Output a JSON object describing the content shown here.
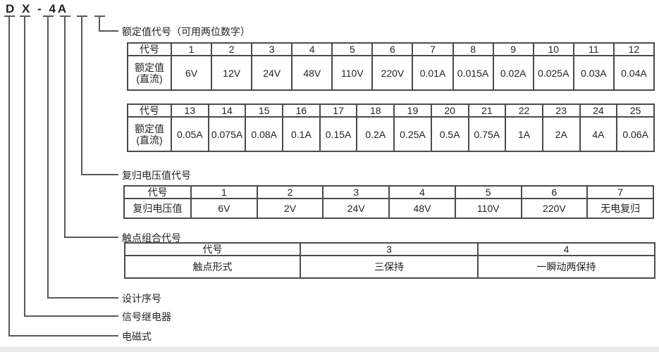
{
  "model": {
    "text": "D X - 4A"
  },
  "labels": {
    "rated_code": "额定值代号（可用两位数字）",
    "reset_code": "复归电压值代号",
    "contact_code": "触点组合代号",
    "design_serial": "设计序号",
    "signal_relay": "信号继电器",
    "electromagnetic": "电磁式"
  },
  "tables": {
    "rated1": {
      "rows": [
        [
          "代号",
          "1",
          "2",
          "3",
          "4",
          "5",
          "6",
          "7",
          "8",
          "9",
          "10",
          "11",
          "12"
        ],
        [
          "额定值\n(直流)",
          "6V",
          "12V",
          "24V",
          "48V",
          "110V",
          "220V",
          "0.01A",
          "0.015A",
          "0.02A",
          "0.025A",
          "0.03A",
          "0.04A"
        ]
      ]
    },
    "rated2": {
      "rows": [
        [
          "代号",
          "13",
          "14",
          "15",
          "16",
          "17",
          "18",
          "19",
          "20",
          "21",
          "22",
          "23",
          "24",
          "25"
        ],
        [
          "额定值\n(直流)",
          "0.05A",
          "0.075A",
          "0.08A",
          "0.1A",
          "0.15A",
          "0.2A",
          "0.25A",
          "0.5A",
          "0.75A",
          "1A",
          "2A",
          "4A",
          "0.06A"
        ]
      ]
    },
    "reset": {
      "rows": [
        [
          "代号",
          "1",
          "2",
          "3",
          "4",
          "5",
          "6",
          "7"
        ],
        [
          "复归电压值",
          "6V",
          "2V",
          "24V",
          "48V",
          "110V",
          "220V",
          "无电复归"
        ]
      ]
    },
    "contact": {
      "rows": [
        [
          "代号",
          "3",
          "4"
        ],
        [
          "触点形式",
          "三保持",
          "一瞬动两保持"
        ]
      ]
    }
  },
  "colors": {
    "line": "#58595b",
    "table_border": "#4b4b4d",
    "text": "#232325",
    "footer_bar": "#eaeaea"
  }
}
